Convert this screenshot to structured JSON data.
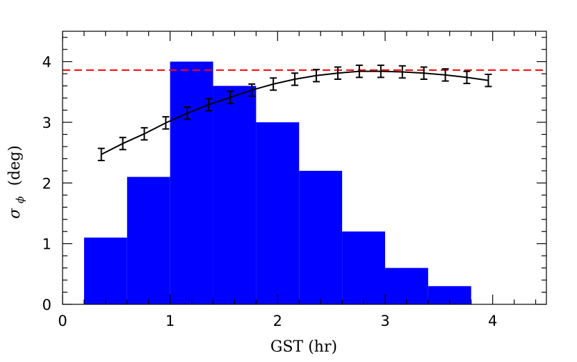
{
  "chart_data": {
    "type": "bar",
    "xlabel": "GST (hr)",
    "ylabel": "σ",
    "ylabel_subscript": "ϕ",
    "ylabel_unit": "(deg)",
    "xlim": [
      0,
      4.5
    ],
    "ylim": [
      0,
      4.5
    ],
    "x_ticks": [
      0,
      1,
      2,
      3,
      4
    ],
    "y_ticks": [
      0,
      1,
      2,
      3,
      4
    ],
    "grid": false,
    "histogram": {
      "color": "#0000ff",
      "bins": [
        {
          "x0": 0.2,
          "x1": 0.6,
          "value": 1.1
        },
        {
          "x0": 0.6,
          "x1": 1.0,
          "value": 2.1
        },
        {
          "x0": 1.0,
          "x1": 1.4,
          "value": 4.0
        },
        {
          "x0": 1.4,
          "x1": 1.8,
          "value": 3.6
        },
        {
          "x0": 1.8,
          "x1": 2.2,
          "value": 3.0
        },
        {
          "x0": 2.2,
          "x1": 2.6,
          "value": 2.2
        },
        {
          "x0": 2.6,
          "x1": 3.0,
          "value": 1.2
        },
        {
          "x0": 3.0,
          "x1": 3.4,
          "value": 0.6
        },
        {
          "x0": 3.4,
          "x1": 3.8,
          "value": 0.3
        }
      ]
    },
    "curve": {
      "type": "line",
      "color": "#000000",
      "errorbar": 0.1,
      "x": [
        0.36,
        0.56,
        0.76,
        0.96,
        1.16,
        1.36,
        1.56,
        1.76,
        1.96,
        2.16,
        2.36,
        2.56,
        2.76,
        2.96,
        3.16,
        3.36,
        3.56,
        3.76,
        3.96
      ],
      "y": [
        2.47,
        2.65,
        2.81,
        2.99,
        3.15,
        3.29,
        3.41,
        3.53,
        3.63,
        3.71,
        3.77,
        3.81,
        3.84,
        3.84,
        3.83,
        3.81,
        3.78,
        3.74,
        3.69
      ]
    },
    "reference_line": {
      "type": "hline",
      "y": 3.86,
      "color": "#ff0000",
      "style": "dashed"
    }
  }
}
